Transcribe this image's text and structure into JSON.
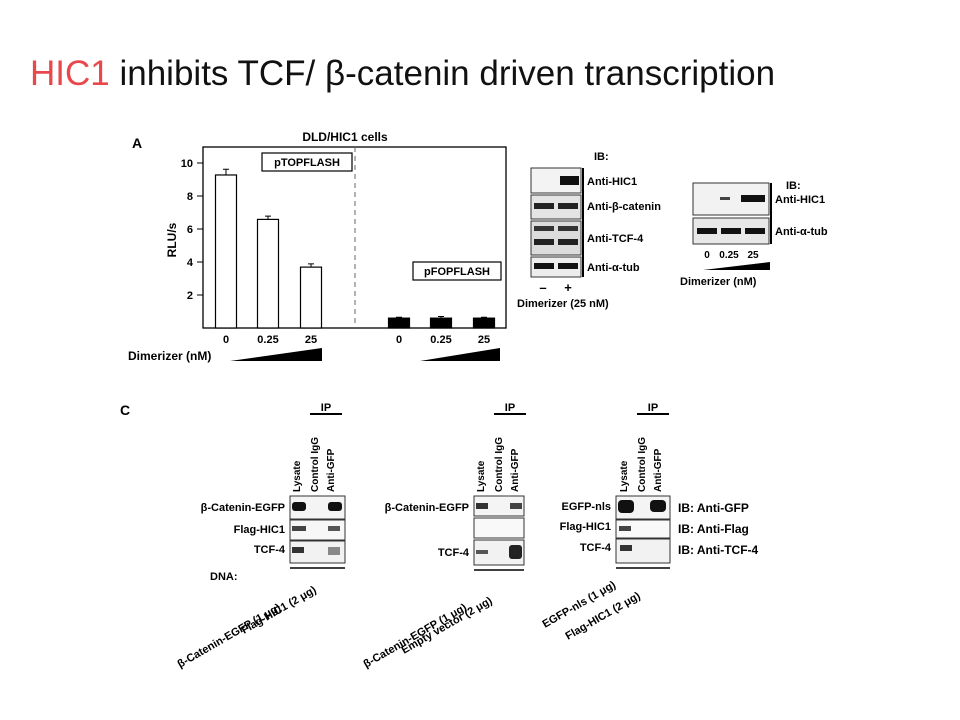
{
  "slide": {
    "title_highlight": "HIC1",
    "title_rest": " inhibits TCF/ β-catenin driven transcription",
    "highlight_color": "#e8484b"
  },
  "panelA": {
    "label": "A",
    "cell_line": "DLD/HIC1 cells",
    "chart_title_left": "pTOPFLASH",
    "chart_title_right": "pFOPFLASH",
    "x_axis_label": "Dimerizer (nM)",
    "ticks_y": [
      "10",
      "8",
      "6",
      "4",
      "2"
    ]
  },
  "chart_data": {
    "type": "bar",
    "ylabel": "RLU/s",
    "xlabel": "Dimerizer (nM)",
    "ylim": [
      0,
      10
    ],
    "series": [
      {
        "name": "pTOPFLASH",
        "categories": [
          "0",
          "0.25",
          "25"
        ],
        "values": [
          9.3,
          6.6,
          3.7
        ],
        "errors": [
          0.35,
          0.2,
          0.2
        ],
        "fill": "#ffffff"
      },
      {
        "name": "pFOPFLASH",
        "categories": [
          "0",
          "0.25",
          "25"
        ],
        "values": [
          0.6,
          0.6,
          0.6
        ],
        "errors": [
          0.05,
          0.1,
          0.05
        ],
        "fill": "#000000"
      }
    ]
  },
  "blot1": {
    "header": "IB:",
    "rows": [
      "Anti-HIC1",
      "Anti-β-catenin",
      "Anti-TCF-4",
      "Anti-α-tub"
    ],
    "lanes": [
      "–",
      "+"
    ],
    "footer": "Dimerizer (25 nM)"
  },
  "blot2": {
    "header": "IB:",
    "rows": [
      "Anti-HIC1",
      "Anti-α-tub"
    ],
    "lanes": [
      "0",
      "0.25",
      "25"
    ],
    "footer": "Dimerizer (nM)"
  },
  "panelC": {
    "label": "C",
    "ip_label": "IP",
    "columns": [
      "Lysate",
      "Control IgG",
      "Anti-GFP"
    ],
    "dna_label": "DNA:",
    "blots": [
      {
        "rows": [
          "β-Catenin-EGFP",
          "Flag-HIC1",
          "TCF-4"
        ],
        "dna": [
          "β-Catenin-EGFP (1 μg)",
          "Flag-HIC1 (2 μg)"
        ]
      },
      {
        "rows": [
          "β-Catenin-EGFP",
          "TCF-4"
        ],
        "dna": [
          "β-Catenin-EGFP (1 μg)",
          "Empty vector (2 μg)"
        ]
      },
      {
        "rows": [
          "EGFP-nls",
          "Flag-HIC1",
          "TCF-4"
        ],
        "dna": [
          "EGFP-nls (1 μg)",
          "Flag-HIC1 (2 μg)"
        ]
      }
    ],
    "ib_labels": [
      "IB: Anti-GFP",
      "IB: Anti-Flag",
      "IB: Anti-TCF-4"
    ]
  }
}
